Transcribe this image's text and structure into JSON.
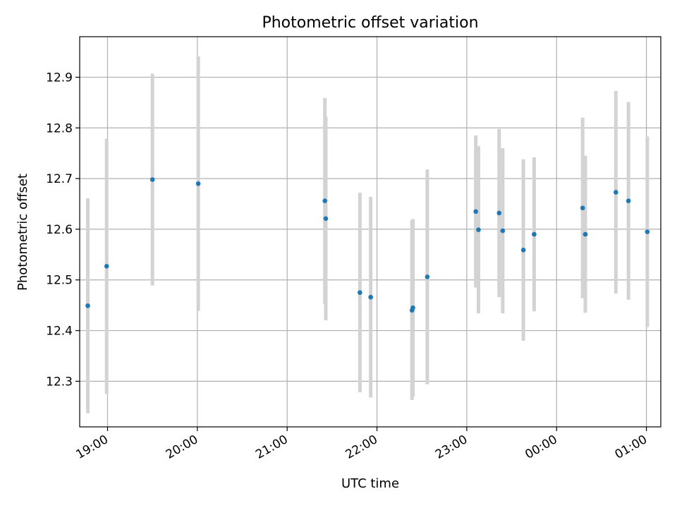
{
  "chart_data": {
    "type": "scatter",
    "title": "Photometric offset variation",
    "xlabel": "UTC time",
    "ylabel": "Photometric offset",
    "x_unit": "hours UTC (values past 24 fall after midnight)",
    "xlim": [
      18.69,
      25.16
    ],
    "ylim": [
      12.21,
      12.98
    ],
    "x_ticks": [
      {
        "value": 19,
        "label": "19:00"
      },
      {
        "value": 20,
        "label": "20:00"
      },
      {
        "value": 21,
        "label": "21:00"
      },
      {
        "value": 22,
        "label": "22:00"
      },
      {
        "value": 23,
        "label": "23:00"
      },
      {
        "value": 24,
        "label": "00:00"
      },
      {
        "value": 25,
        "label": "01:00"
      }
    ],
    "y_ticks": [
      {
        "value": 12.3,
        "label": "12.3"
      },
      {
        "value": 12.4,
        "label": "12.4"
      },
      {
        "value": 12.5,
        "label": "12.5"
      },
      {
        "value": 12.6,
        "label": "12.6"
      },
      {
        "value": 12.7,
        "label": "12.7"
      },
      {
        "value": 12.8,
        "label": "12.8"
      },
      {
        "value": 12.9,
        "label": "12.9"
      }
    ],
    "grid": true,
    "marker_color": "#1f77b4",
    "errorbar_color": "#d3d3d3",
    "points": [
      {
        "x": 18.78,
        "y": 12.449,
        "err": 0.212
      },
      {
        "x": 18.99,
        "y": 12.527,
        "err": 0.252
      },
      {
        "x": 19.5,
        "y": 12.698,
        "err": 0.209
      },
      {
        "x": 20.01,
        "y": 12.69,
        "err": 0.251
      },
      {
        "x": 21.42,
        "y": 12.656,
        "err": 0.203
      },
      {
        "x": 21.43,
        "y": 12.621,
        "err": 0.201
      },
      {
        "x": 21.81,
        "y": 12.475,
        "err": 0.197
      },
      {
        "x": 21.93,
        "y": 12.466,
        "err": 0.198
      },
      {
        "x": 22.39,
        "y": 12.44,
        "err": 0.177
      },
      {
        "x": 22.4,
        "y": 12.445,
        "err": 0.175
      },
      {
        "x": 22.56,
        "y": 12.506,
        "err": 0.212
      },
      {
        "x": 23.1,
        "y": 12.635,
        "err": 0.15
      },
      {
        "x": 23.13,
        "y": 12.599,
        "err": 0.165
      },
      {
        "x": 23.36,
        "y": 12.632,
        "err": 0.166
      },
      {
        "x": 23.4,
        "y": 12.597,
        "err": 0.163
      },
      {
        "x": 23.63,
        "y": 12.559,
        "err": 0.179
      },
      {
        "x": 23.75,
        "y": 12.59,
        "err": 0.152
      },
      {
        "x": 24.29,
        "y": 12.642,
        "err": 0.178
      },
      {
        "x": 24.32,
        "y": 12.59,
        "err": 0.155
      },
      {
        "x": 24.66,
        "y": 12.673,
        "err": 0.2
      },
      {
        "x": 24.8,
        "y": 12.656,
        "err": 0.195
      },
      {
        "x": 25.01,
        "y": 12.595,
        "err": 0.188
      }
    ]
  }
}
